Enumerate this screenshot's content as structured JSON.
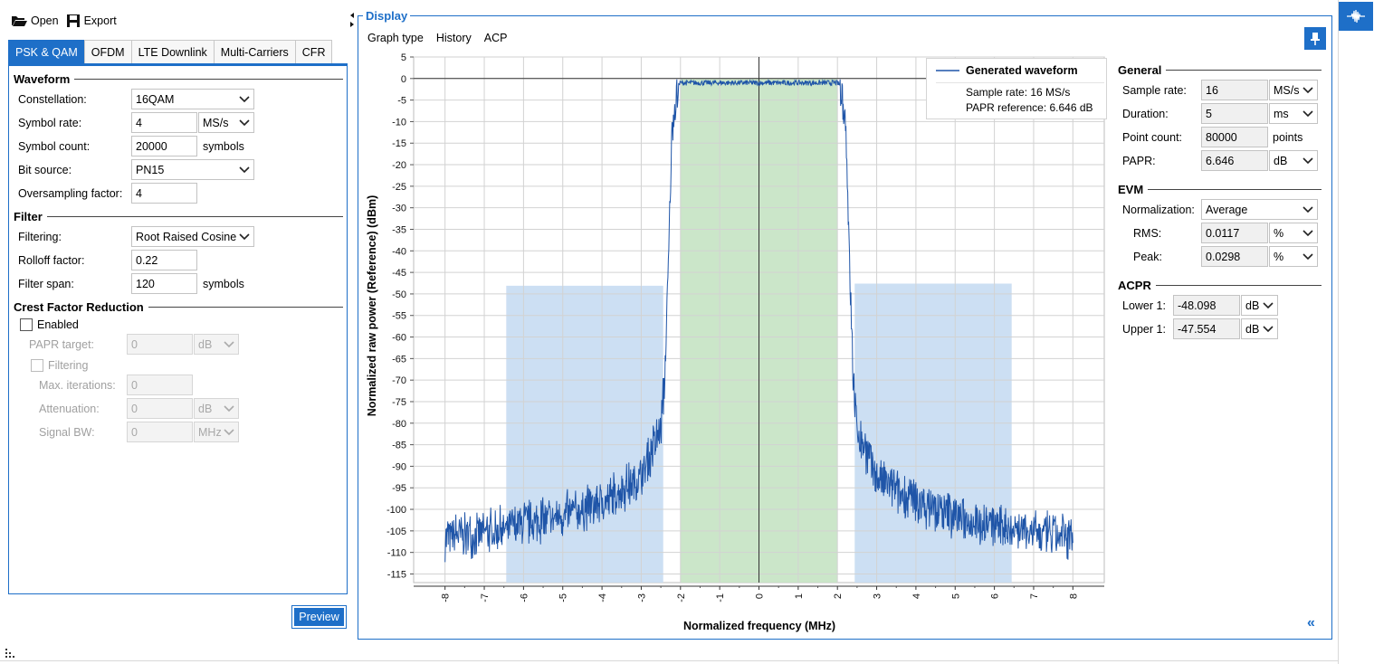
{
  "toolbar": {
    "open_label": "Open",
    "export_label": "Export"
  },
  "tabs": [
    {
      "label": "PSK & QAM",
      "active": true
    },
    {
      "label": "OFDM"
    },
    {
      "label": "LTE Downlink"
    },
    {
      "label": "Multi-Carriers"
    },
    {
      "label": "CFR"
    }
  ],
  "waveform": {
    "title": "Waveform",
    "constellation": {
      "label": "Constellation:",
      "value": "16QAM"
    },
    "symbol_rate": {
      "label": "Symbol rate:",
      "value": "4",
      "unit": "MS/s"
    },
    "symbol_count": {
      "label": "Symbol count:",
      "value": "20000",
      "unit": "symbols"
    },
    "bit_source": {
      "label": "Bit source:",
      "value": "PN15"
    },
    "oversampling": {
      "label": "Oversampling factor:",
      "value": "4"
    }
  },
  "filter": {
    "title": "Filter",
    "filtering": {
      "label": "Filtering:",
      "value": "Root Raised Cosine"
    },
    "rolloff": {
      "label": "Rolloff factor:",
      "value": "0.22"
    },
    "span": {
      "label": "Filter span:",
      "value": "120",
      "unit": "symbols"
    }
  },
  "cfr": {
    "title": "Crest Factor Reduction",
    "enabled_label": "Enabled",
    "papr_target": {
      "label": "PAPR target:",
      "value": "0",
      "unit": "dB"
    },
    "filtering_label": "Filtering",
    "max_iter": {
      "label": "Max. iterations:",
      "value": "0"
    },
    "attenuation": {
      "label": "Attenuation:",
      "value": "0",
      "unit": "dB"
    },
    "signal_bw": {
      "label": "Signal BW:",
      "value": "0",
      "unit": "MHz"
    }
  },
  "preview_label": "Preview",
  "display": {
    "title": "Display",
    "menu": [
      "Graph type",
      "History",
      "ACP"
    ]
  },
  "general": {
    "title": "General",
    "sample_rate": {
      "label": "Sample rate:",
      "value": "16",
      "unit": "MS/s"
    },
    "duration": {
      "label": "Duration:",
      "value": "5",
      "unit": "ms"
    },
    "point_count": {
      "label": "Point count:",
      "value": "80000",
      "unit": "points"
    },
    "papr": {
      "label": "PAPR:",
      "value": "6.646",
      "unit": "dB"
    }
  },
  "evm": {
    "title": "EVM",
    "normalization": {
      "label": "Normalization:",
      "value": "Average"
    },
    "rms": {
      "label": "RMS:",
      "value": "0.0117",
      "unit": "%"
    },
    "peak": {
      "label": "Peak:",
      "value": "0.0298",
      "unit": "%"
    }
  },
  "acpr": {
    "title": "ACPR",
    "lower1": {
      "label": "Lower 1:",
      "value": "-48.098",
      "unit": "dB"
    },
    "upper1": {
      "label": "Upper 1:",
      "value": "-47.554",
      "unit": "dB"
    }
  },
  "legend": {
    "series_name": "Generated waveform",
    "line1": "Sample rate: 16 MS/s",
    "line2": "PAPR reference: 6.646 dB"
  },
  "colors": {
    "accent": "#1e6fc8",
    "trace": "#1f55a8",
    "main_band": "#c5e3c3",
    "adj_band": "#c6dcf2"
  },
  "chart_data": {
    "type": "line",
    "xlabel": "Normalized frequency (MHz)",
    "ylabel": "Normalized raw power (Reference) (dBm)",
    "xlim": [
      -8.8,
      8.8
    ],
    "ylim": [
      -117,
      5
    ],
    "xticks": [
      -8,
      -7,
      -6,
      -5,
      -4,
      -3,
      -2,
      -1,
      0,
      1,
      2,
      3,
      4,
      5,
      6,
      7,
      8
    ],
    "yticks": [
      5,
      0,
      -5,
      -10,
      -15,
      -20,
      -25,
      -30,
      -35,
      -40,
      -45,
      -50,
      -55,
      -60,
      -65,
      -70,
      -75,
      -80,
      -85,
      -90,
      -95,
      -100,
      -105,
      -110,
      -115
    ],
    "grid": true,
    "legend_position": "top-right",
    "bands": [
      {
        "name": "Lower 1",
        "x": [
          -6.44,
          -2.44
        ],
        "top": -48.1
      },
      {
        "name": "Main channel",
        "x": [
          -2.0,
          2.0
        ],
        "top": 0
      },
      {
        "name": "Upper 1",
        "x": [
          2.44,
          6.44
        ],
        "top": -47.6
      }
    ],
    "series": [
      {
        "name": "Generated waveform",
        "x": [
          -8,
          -7,
          -6,
          -5,
          -4,
          -3,
          -2.5,
          -2.4,
          -2.3,
          -2.25,
          -2.2,
          -2.1,
          -2,
          -1,
          0,
          1,
          2,
          2.1,
          2.2,
          2.25,
          2.3,
          2.4,
          2.5,
          3,
          4,
          5,
          6,
          7,
          8
        ],
        "y": [
          -105,
          -104,
          -102,
          -100,
          -97,
          -91,
          -80,
          -68,
          -40,
          -20,
          -8,
          -2,
          -1,
          -1,
          -1,
          -1,
          -1,
          -2,
          -8,
          -20,
          -40,
          -68,
          -80,
          -91,
          -97,
          -100,
          -102,
          -104,
          -105
        ]
      }
    ]
  }
}
